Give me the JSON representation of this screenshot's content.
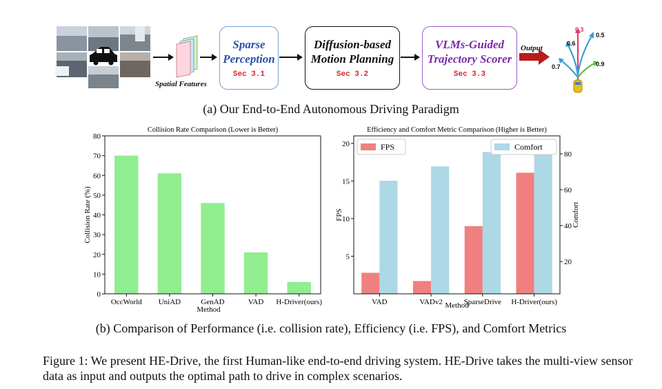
{
  "pipeline": {
    "spatial_features_label": "Spatial Features",
    "boxes": [
      {
        "lines": [
          "Sparse",
          "Perception"
        ],
        "sec": "Sec 3.1"
      },
      {
        "lines": [
          "Diffusion-based",
          "Motion Planning"
        ],
        "sec": "Sec 3.2"
      },
      {
        "lines": [
          "VLMs-Guided",
          "Trajectory Scorer"
        ],
        "sec": "Sec 3.3"
      }
    ],
    "output_label": "Output",
    "scores": [
      "0.3",
      "0.5",
      "0.6",
      "0.7",
      "0.9"
    ],
    "colors": {
      "sparse": "#2b4fa8",
      "motion": "#111111",
      "scorer": "#7a2aa8",
      "sec": "#d6262e",
      "output_arrow": "#b81c1c"
    }
  },
  "caption_a": "(a) Our End-to-End Autonomous Driving Paradigm",
  "caption_b": "(b) Comparison of Performance (i.e. collision rate), Efficiency (i.e. FPS), and Comfort Metrics",
  "figure_caption": "Figure 1: We present HE-Drive, the first Human-like end-to-end driving system. HE-Drive takes the multi-view sensor data as input and outputs the optimal path to drive in complex scenarios.",
  "chart_data": [
    {
      "type": "bar",
      "title": "Collision Rate Comparison (Lower is Better)",
      "categories": [
        "OccWorld",
        "UniAD",
        "GenAD",
        "VAD",
        "H-Driver(ours)"
      ],
      "values": [
        70,
        61,
        46,
        21,
        6
      ],
      "xlabel": "Method",
      "ylabel": "Collision Rate (%)",
      "ylim": [
        0,
        80
      ],
      "yticks": [
        0,
        10,
        20,
        30,
        40,
        50,
        60,
        70,
        80
      ],
      "color": "#90ee90"
    },
    {
      "type": "bar",
      "title": "Efficiency and Comfort Metric Comparison (Higher is Better)",
      "categories": [
        "VAD",
        "VADv2",
        "SparseDrive",
        "H-Driver(ours)"
      ],
      "xlabel": "Method",
      "series": [
        {
          "name": "FPS",
          "axis": "left",
          "values": [
            2.8,
            1.7,
            9.0,
            16.1
          ],
          "color": "#f08080"
        },
        {
          "name": "Comfort",
          "axis": "right",
          "values": [
            65,
            73,
            81,
            85
          ],
          "color": "#add8e6"
        }
      ],
      "ylabel": "FPS",
      "ylim": [
        0,
        21
      ],
      "yticks": [
        5,
        10,
        15,
        20
      ],
      "y2label": "Comfort",
      "y2lim": [
        2,
        90
      ],
      "y2ticks": [
        20,
        40,
        60,
        80
      ],
      "legend": [
        "FPS",
        "Comfort"
      ]
    }
  ]
}
